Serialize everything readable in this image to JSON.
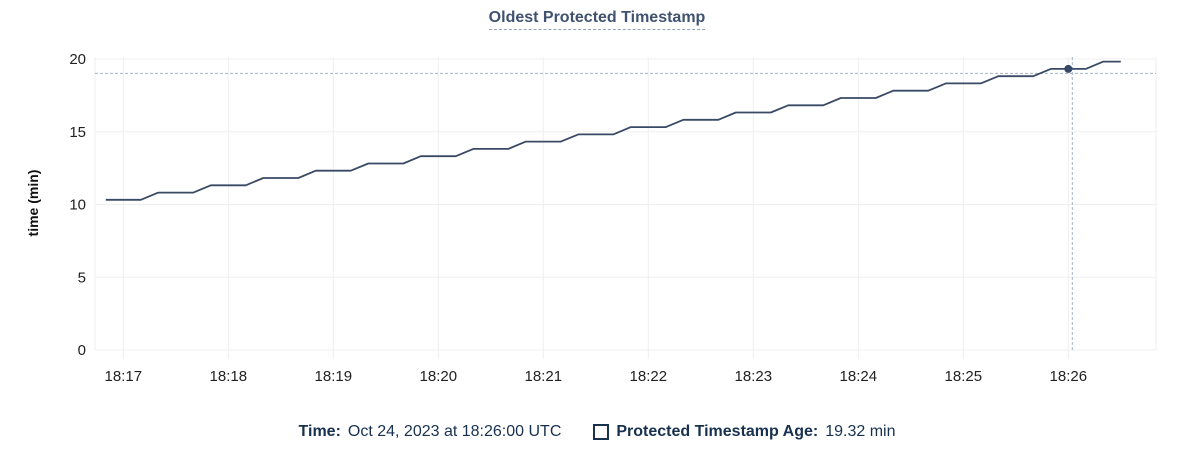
{
  "title": {
    "text": "Oldest Protected Timestamp"
  },
  "y_axis": {
    "label": "time (min)",
    "ticks": [
      0,
      5,
      10,
      15,
      20
    ]
  },
  "x_axis": {
    "ticks": [
      "18:17",
      "18:18",
      "18:19",
      "18:20",
      "18:21",
      "18:22",
      "18:23",
      "18:24",
      "18:25",
      "18:26"
    ]
  },
  "footer": {
    "time_label": "Time:",
    "time_value": "Oct 24, 2023 at 18:26:00 UTC",
    "series_label": "Protected Timestamp Age:",
    "series_value": "19.32 min"
  },
  "colors": {
    "title_text": "#3f5270",
    "title_underline": "#93a1b4",
    "axis_text": "#212121",
    "series_line": "#394a66",
    "grid_line": "#efefef",
    "crosshair": "#a2b5c6",
    "footer_text": "#17314f"
  },
  "chart_data": {
    "type": "line",
    "title": "Oldest Protected Timestamp",
    "ylabel": "time (min)",
    "ylim": [
      0,
      20
    ],
    "y_ticks": [
      0,
      5,
      10,
      15,
      20
    ],
    "x_tick_labels": [
      "18:17",
      "18:18",
      "18:19",
      "18:20",
      "18:21",
      "18:22",
      "18:23",
      "18:24",
      "18:25",
      "18:26"
    ],
    "x_range": [
      "18:16:44",
      "18:26:50"
    ],
    "grid": true,
    "legend_position": "bottom",
    "series": [
      {
        "name": "Protected Timestamp Age",
        "unit": "min",
        "points": [
          [
            "18:16:50",
            10.32
          ],
          [
            "18:17:00",
            10.32
          ],
          [
            "18:17:10",
            10.32
          ],
          [
            "18:17:20",
            10.82
          ],
          [
            "18:17:30",
            10.82
          ],
          [
            "18:17:40",
            10.82
          ],
          [
            "18:17:50",
            11.32
          ],
          [
            "18:18:00",
            11.32
          ],
          [
            "18:18:10",
            11.32
          ],
          [
            "18:18:20",
            11.82
          ],
          [
            "18:18:30",
            11.82
          ],
          [
            "18:18:40",
            11.82
          ],
          [
            "18:18:50",
            12.32
          ],
          [
            "18:19:00",
            12.32
          ],
          [
            "18:19:10",
            12.32
          ],
          [
            "18:19:20",
            12.82
          ],
          [
            "18:19:30",
            12.82
          ],
          [
            "18:19:40",
            12.82
          ],
          [
            "18:19:50",
            13.32
          ],
          [
            "18:20:00",
            13.32
          ],
          [
            "18:20:10",
            13.32
          ],
          [
            "18:20:20",
            13.82
          ],
          [
            "18:20:30",
            13.82
          ],
          [
            "18:20:40",
            13.82
          ],
          [
            "18:20:50",
            14.32
          ],
          [
            "18:21:00",
            14.32
          ],
          [
            "18:21:10",
            14.32
          ],
          [
            "18:21:20",
            14.82
          ],
          [
            "18:21:30",
            14.82
          ],
          [
            "18:21:40",
            14.82
          ],
          [
            "18:21:50",
            15.32
          ],
          [
            "18:22:00",
            15.32
          ],
          [
            "18:22:10",
            15.32
          ],
          [
            "18:22:20",
            15.82
          ],
          [
            "18:22:30",
            15.82
          ],
          [
            "18:22:40",
            15.82
          ],
          [
            "18:22:50",
            16.32
          ],
          [
            "18:23:00",
            16.32
          ],
          [
            "18:23:10",
            16.32
          ],
          [
            "18:23:20",
            16.82
          ],
          [
            "18:23:30",
            16.82
          ],
          [
            "18:23:40",
            16.82
          ],
          [
            "18:23:50",
            17.32
          ],
          [
            "18:24:00",
            17.32
          ],
          [
            "18:24:10",
            17.32
          ],
          [
            "18:24:20",
            17.82
          ],
          [
            "18:24:30",
            17.82
          ],
          [
            "18:24:40",
            17.82
          ],
          [
            "18:24:50",
            18.32
          ],
          [
            "18:25:00",
            18.32
          ],
          [
            "18:25:10",
            18.32
          ],
          [
            "18:25:20",
            18.82
          ],
          [
            "18:25:30",
            18.82
          ],
          [
            "18:25:40",
            18.82
          ],
          [
            "18:25:50",
            19.32
          ],
          [
            "18:26:00",
            19.32
          ],
          [
            "18:26:10",
            19.32
          ],
          [
            "18:26:20",
            19.82
          ],
          [
            "18:26:30",
            19.82
          ]
        ]
      }
    ],
    "highlight": {
      "time": "18:26:00",
      "value": 19.32,
      "date_label": "Oct 24, 2023 at 18:26:00 UTC",
      "value_label": "19.32 min"
    }
  }
}
